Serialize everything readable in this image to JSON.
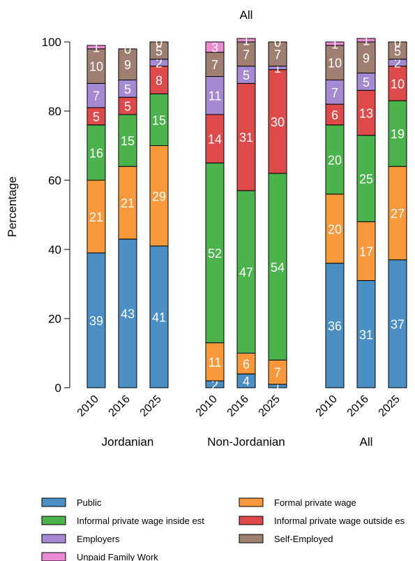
{
  "chart_data": {
    "type": "bar",
    "stacked": true,
    "title": "All",
    "ylabel": "Percentage",
    "xlabel": "",
    "ylim": [
      0,
      100
    ],
    "yticks": [
      0,
      20,
      40,
      60,
      80,
      100
    ],
    "groups": [
      {
        "name": "Jordanian",
        "years": [
          "2010",
          "2016",
          "2025"
        ]
      },
      {
        "name": "Non-Jordanian",
        "years": [
          "2010",
          "2016",
          "2025"
        ]
      },
      {
        "name": "All",
        "years": [
          "2010",
          "2016",
          "2025"
        ]
      }
    ],
    "series": [
      {
        "name": "Public",
        "color": "#4a8ec4",
        "values": [
          39,
          43,
          41,
          2,
          4,
          1,
          36,
          31,
          37
        ]
      },
      {
        "name": "Formal private wage",
        "color": "#f7993a",
        "values": [
          21,
          21,
          29,
          11,
          6,
          7,
          20,
          17,
          27
        ]
      },
      {
        "name": "Informal private wage inside est",
        "color": "#4cb34c",
        "values": [
          16,
          15,
          15,
          52,
          47,
          54,
          20,
          25,
          19
        ]
      },
      {
        "name": "Informal private wage outside es",
        "color": "#de4a4a",
        "values": [
          5,
          5,
          8,
          14,
          31,
          30,
          6,
          13,
          10
        ]
      },
      {
        "name": "Employers",
        "color": "#a58ad3",
        "values": [
          7,
          5,
          2,
          11,
          5,
          1,
          7,
          5,
          2
        ]
      },
      {
        "name": "Self-Employed",
        "color": "#9f7f72",
        "values": [
          10,
          9,
          5,
          7,
          7,
          7,
          10,
          9,
          5
        ]
      },
      {
        "name": "Unpaid Family Work",
        "color": "#eb8ad3",
        "values": [
          1,
          0,
          0,
          3,
          1,
          0,
          1,
          1,
          0
        ]
      }
    ],
    "legend_position": "bottom",
    "grid": false
  }
}
